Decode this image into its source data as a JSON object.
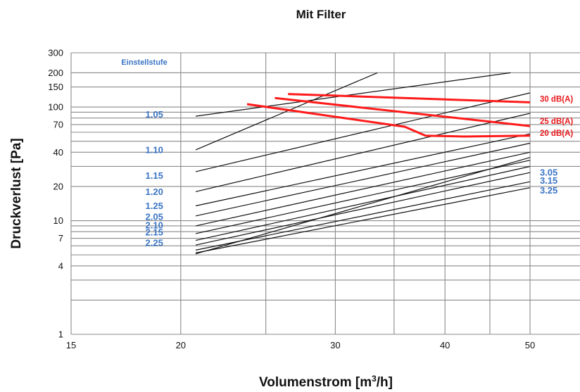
{
  "chart_data": {
    "type": "line",
    "title": "Mit Filter",
    "xlabel": "Volumenstrom [m³/h]",
    "xlabel_main": "Volumenstrom [m",
    "xlabel_sup": "3",
    "xlabel_end": "/h]",
    "ylabel": "Druckverlust [Pa]",
    "x_scale": "log",
    "y_scale": "log",
    "xlim": [
      15,
      57
    ],
    "ylim": [
      1,
      300
    ],
    "x_ticks": [
      15,
      20,
      30,
      40,
      50
    ],
    "x_tick_labels": [
      "15",
      "20",
      "30",
      "40",
      "50"
    ],
    "y_ticks": [
      1,
      4,
      7,
      10,
      20,
      40,
      70,
      100,
      150,
      200,
      300
    ],
    "y_tick_labels": [
      "1",
      "4",
      "7",
      "10",
      "20",
      "40",
      "70",
      "100",
      "150",
      "200",
      "300"
    ],
    "grid": true,
    "legend_title": "Einstellstufe",
    "colors": {
      "setting_lines": "#111111",
      "sound_lines": "#ff1a1a",
      "setting_labels": "#3a74c4",
      "sound_labels": "#e8191c",
      "grid": "#8a8a8a"
    },
    "series": [
      {
        "name": "1.05",
        "group": "setting",
        "x": [
          20.8,
          47.5
        ],
        "y": [
          83,
          200
        ]
      },
      {
        "name": "1.10",
        "group": "setting",
        "x": [
          20.8,
          33.5
        ],
        "y": [
          42,
          200
        ]
      },
      {
        "name": "1.15",
        "group": "setting",
        "x": [
          20.8,
          50
        ],
        "y": [
          27,
          133
        ]
      },
      {
        "name": "1.20",
        "group": "setting",
        "x": [
          20.8,
          50
        ],
        "y": [
          18,
          88
        ]
      },
      {
        "name": "1.25",
        "group": "setting",
        "x": [
          20.8,
          50
        ],
        "y": [
          13.5,
          58
        ]
      },
      {
        "name": "2.05",
        "group": "setting",
        "x": [
          20.8,
          50
        ],
        "y": [
          11,
          48
        ]
      },
      {
        "name": "2.10",
        "group": "setting",
        "x": [
          20.8,
          50
        ],
        "y": [
          9,
          40
        ]
      },
      {
        "name": "2.15",
        "group": "setting",
        "x": [
          20.8,
          50
        ],
        "y": [
          7.7,
          34
        ]
      },
      {
        "name": "2.25",
        "group": "setting",
        "x": [
          20.8,
          50
        ],
        "y": [
          6.7,
          30
        ]
      },
      {
        "name": "3.05",
        "group": "setting",
        "x": [
          20.8,
          50
        ],
        "y": [
          6.1,
          26.5
        ]
      },
      {
        "name": "3.15",
        "group": "setting",
        "x": [
          20.8,
          50
        ],
        "y": [
          5.5,
          22
        ]
      },
      {
        "name": "3.25",
        "group": "setting",
        "x": [
          20.8,
          50
        ],
        "y": [
          5.2,
          19.5
        ]
      },
      {
        "name": "",
        "group": "setting",
        "x": [
          20.8,
          50
        ],
        "y": [
          5.1,
          36
        ]
      },
      {
        "name": "30 dB(A)",
        "group": "sound",
        "x": [
          26.5,
          50
        ],
        "y": [
          130,
          110
        ]
      },
      {
        "name": "25 dB(A)",
        "group": "sound",
        "x": [
          25.6,
          50
        ],
        "y": [
          120,
          68
        ]
      },
      {
        "name": "20 dB(A)",
        "group": "sound",
        "x": [
          23.8,
          36,
          38,
          42,
          50
        ],
        "y": [
          106,
          67,
          56,
          55,
          56
        ]
      }
    ],
    "setting_labels": [
      {
        "text": "1.05",
        "x": 19.1,
        "y": 86
      },
      {
        "text": "1.10",
        "x": 19.1,
        "y": 42
      },
      {
        "text": "1.15",
        "x": 19.1,
        "y": 25
      },
      {
        "text": "1.20",
        "x": 19.1,
        "y": 18
      },
      {
        "text": "1.25",
        "x": 19.1,
        "y": 13.5
      },
      {
        "text": "2.05",
        "x": 19.1,
        "y": 10.8
      },
      {
        "text": "2.10",
        "x": 19.1,
        "y": 9.1
      },
      {
        "text": "2.15",
        "x": 19.1,
        "y": 7.9
      },
      {
        "text": "2.25",
        "x": 19.1,
        "y": 6.4
      },
      {
        "text": "3.05",
        "x": 51.3,
        "y": 26.5
      },
      {
        "text": "3.15",
        "x": 51.3,
        "y": 22.5
      },
      {
        "text": "3.25",
        "x": 51.3,
        "y": 18.5
      }
    ],
    "sound_labels": [
      {
        "text": "30 dB(A)",
        "x": 51.3,
        "y": 118
      },
      {
        "text": "25 dB(A)",
        "x": 51.3,
        "y": 75
      },
      {
        "text": "20 dB(A)",
        "x": 51.3,
        "y": 59
      }
    ]
  }
}
